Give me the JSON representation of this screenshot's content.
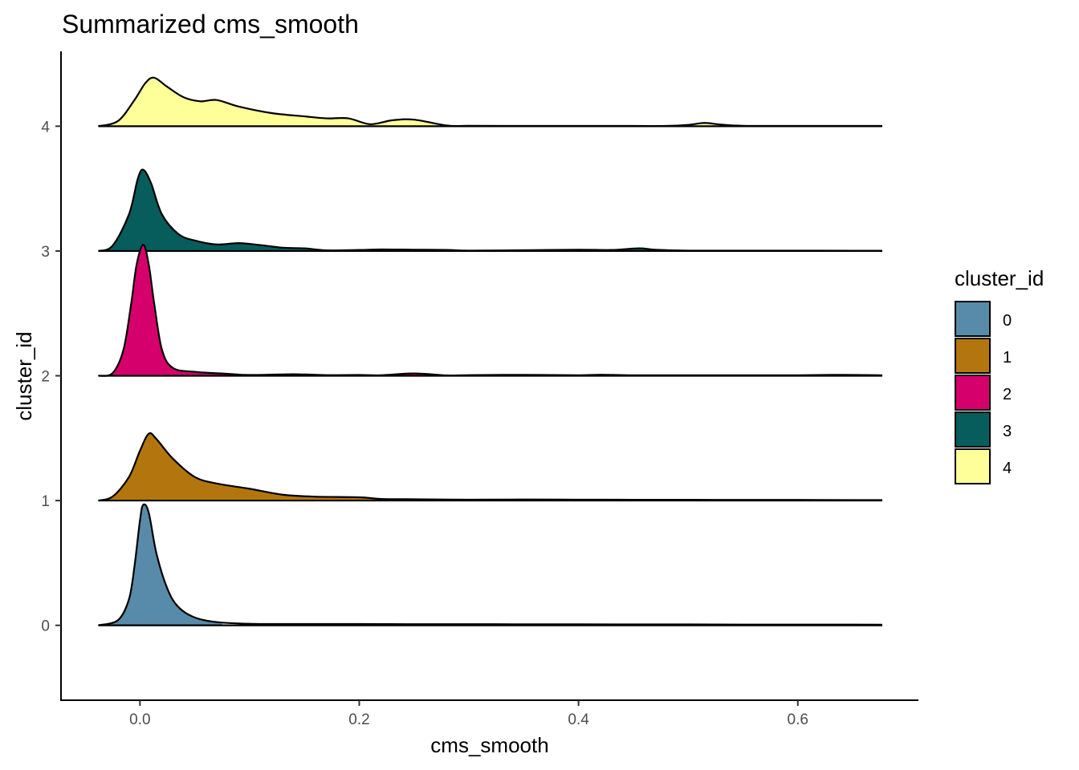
{
  "chart_data": {
    "type": "ridgeline",
    "title": "Summarized cms_smooth",
    "xlabel": "cms_smooth",
    "ylabel": "cluster_id",
    "xlim": [
      -0.072,
      0.71
    ],
    "ylim": [
      -0.6,
      4.6
    ],
    "x_ticks": [
      0.0,
      0.2,
      0.4,
      0.6
    ],
    "x_tick_labels": [
      "0.0",
      "0.2",
      "0.4",
      "0.6"
    ],
    "y_ticks": [
      0,
      1,
      2,
      3,
      4
    ],
    "y_tick_labels": [
      "0",
      "1",
      "2",
      "3",
      "4"
    ],
    "grid": false,
    "legend": {
      "title": "cluster_id",
      "position": "right",
      "entries": [
        "0",
        "1",
        "2",
        "3",
        "4"
      ]
    },
    "colors": {
      "0": "#578BA9",
      "1": "#B3760F",
      "2": "#D6006D",
      "3": "#075C5C",
      "4": "#FFFF9A"
    },
    "series": [
      {
        "name": "0",
        "baseline": 0,
        "fill_until": 0.075,
        "density": [
          [
            -0.038,
            0
          ],
          [
            -0.02,
            0.04
          ],
          [
            -0.01,
            0.2
          ],
          [
            -0.005,
            0.45
          ],
          [
            0,
            0.8
          ],
          [
            0.003,
            0.92
          ],
          [
            0.008,
            0.86
          ],
          [
            0.015,
            0.55
          ],
          [
            0.025,
            0.28
          ],
          [
            0.035,
            0.14
          ],
          [
            0.05,
            0.06
          ],
          [
            0.07,
            0.025
          ],
          [
            0.1,
            0.012
          ],
          [
            0.15,
            0.01
          ],
          [
            0.2,
            0.01
          ],
          [
            0.25,
            0.009
          ],
          [
            0.3,
            0.009
          ],
          [
            0.35,
            0.008
          ],
          [
            0.4,
            0.008
          ],
          [
            0.45,
            0.007
          ],
          [
            0.5,
            0.007
          ],
          [
            0.55,
            0.006
          ],
          [
            0.6,
            0.006
          ],
          [
            0.65,
            0.006
          ],
          [
            0.677,
            0.005
          ]
        ]
      },
      {
        "name": "1",
        "baseline": 1,
        "fill_until": 0.27,
        "density": [
          [
            -0.038,
            0
          ],
          [
            -0.025,
            0.03
          ],
          [
            -0.01,
            0.18
          ],
          [
            0,
            0.38
          ],
          [
            0.008,
            0.51
          ],
          [
            0.015,
            0.47
          ],
          [
            0.03,
            0.32
          ],
          [
            0.05,
            0.18
          ],
          [
            0.07,
            0.13
          ],
          [
            0.1,
            0.09
          ],
          [
            0.13,
            0.045
          ],
          [
            0.16,
            0.03
          ],
          [
            0.2,
            0.025
          ],
          [
            0.22,
            0.012
          ],
          [
            0.25,
            0.01
          ],
          [
            0.3,
            0.007
          ],
          [
            0.35,
            0.008
          ],
          [
            0.4,
            0.007
          ],
          [
            0.45,
            0.006
          ],
          [
            0.5,
            0.006
          ],
          [
            0.55,
            0.005
          ],
          [
            0.6,
            0.005
          ],
          [
            0.65,
            0.004
          ],
          [
            0.677,
            0.004
          ]
        ]
      },
      {
        "name": "2",
        "baseline": 2,
        "fill_until": 0.27,
        "density": [
          [
            -0.038,
            0
          ],
          [
            -0.025,
            0.02
          ],
          [
            -0.015,
            0.2
          ],
          [
            -0.008,
            0.55
          ],
          [
            -0.003,
            0.85
          ],
          [
            0.003,
            1.0
          ],
          [
            0.008,
            0.85
          ],
          [
            0.013,
            0.55
          ],
          [
            0.02,
            0.2
          ],
          [
            0.03,
            0.06
          ],
          [
            0.05,
            0.03
          ],
          [
            0.08,
            0.015
          ],
          [
            0.1,
            0.006
          ],
          [
            0.14,
            0.012
          ],
          [
            0.17,
            0.005
          ],
          [
            0.2,
            0.006
          ],
          [
            0.22,
            0.004
          ],
          [
            0.25,
            0.018
          ],
          [
            0.28,
            0.003
          ],
          [
            0.3,
            0.005
          ],
          [
            0.35,
            0.007
          ],
          [
            0.4,
            0.004
          ],
          [
            0.42,
            0.008
          ],
          [
            0.45,
            0.004
          ],
          [
            0.5,
            0.004
          ],
          [
            0.55,
            0.004
          ],
          [
            0.6,
            0.004
          ],
          [
            0.64,
            0.007
          ],
          [
            0.677,
            0.004
          ]
        ]
      },
      {
        "name": "3",
        "baseline": 3,
        "fill_until": 0.47,
        "density": [
          [
            -0.038,
            0
          ],
          [
            -0.025,
            0.04
          ],
          [
            -0.01,
            0.28
          ],
          [
            -0.002,
            0.55
          ],
          [
            0.003,
            0.62
          ],
          [
            0.01,
            0.52
          ],
          [
            0.02,
            0.28
          ],
          [
            0.035,
            0.13
          ],
          [
            0.05,
            0.08
          ],
          [
            0.07,
            0.05
          ],
          [
            0.09,
            0.06
          ],
          [
            0.11,
            0.045
          ],
          [
            0.13,
            0.025
          ],
          [
            0.15,
            0.02
          ],
          [
            0.17,
            0.005
          ],
          [
            0.2,
            0.008
          ],
          [
            0.22,
            0.012
          ],
          [
            0.25,
            0.01
          ],
          [
            0.28,
            0.008
          ],
          [
            0.3,
            0.003
          ],
          [
            0.35,
            0.006
          ],
          [
            0.4,
            0.01
          ],
          [
            0.43,
            0.008
          ],
          [
            0.455,
            0.02
          ],
          [
            0.47,
            0.01
          ],
          [
            0.5,
            0.003
          ],
          [
            0.55,
            0.003
          ],
          [
            0.6,
            0.003
          ],
          [
            0.65,
            0.002
          ],
          [
            0.677,
            0.002
          ]
        ]
      },
      {
        "name": "4",
        "baseline": 4,
        "fill_until": 0.677,
        "density": [
          [
            -0.038,
            0
          ],
          [
            -0.02,
            0.04
          ],
          [
            -0.005,
            0.2
          ],
          [
            0.005,
            0.33
          ],
          [
            0.013,
            0.37
          ],
          [
            0.025,
            0.3
          ],
          [
            0.04,
            0.22
          ],
          [
            0.055,
            0.19
          ],
          [
            0.07,
            0.2
          ],
          [
            0.09,
            0.15
          ],
          [
            0.12,
            0.1
          ],
          [
            0.15,
            0.075
          ],
          [
            0.17,
            0.06
          ],
          [
            0.19,
            0.06
          ],
          [
            0.21,
            0.015
          ],
          [
            0.23,
            0.045
          ],
          [
            0.25,
            0.05
          ],
          [
            0.28,
            0.005
          ],
          [
            0.3,
            0.003
          ],
          [
            0.35,
            0.002
          ],
          [
            0.4,
            0.002
          ],
          [
            0.45,
            0.002
          ],
          [
            0.48,
            0.002
          ],
          [
            0.5,
            0.01
          ],
          [
            0.515,
            0.025
          ],
          [
            0.53,
            0.012
          ],
          [
            0.55,
            0.003
          ],
          [
            0.6,
            0.002
          ],
          [
            0.65,
            0.002
          ],
          [
            0.677,
            0.002
          ]
        ]
      }
    ]
  }
}
